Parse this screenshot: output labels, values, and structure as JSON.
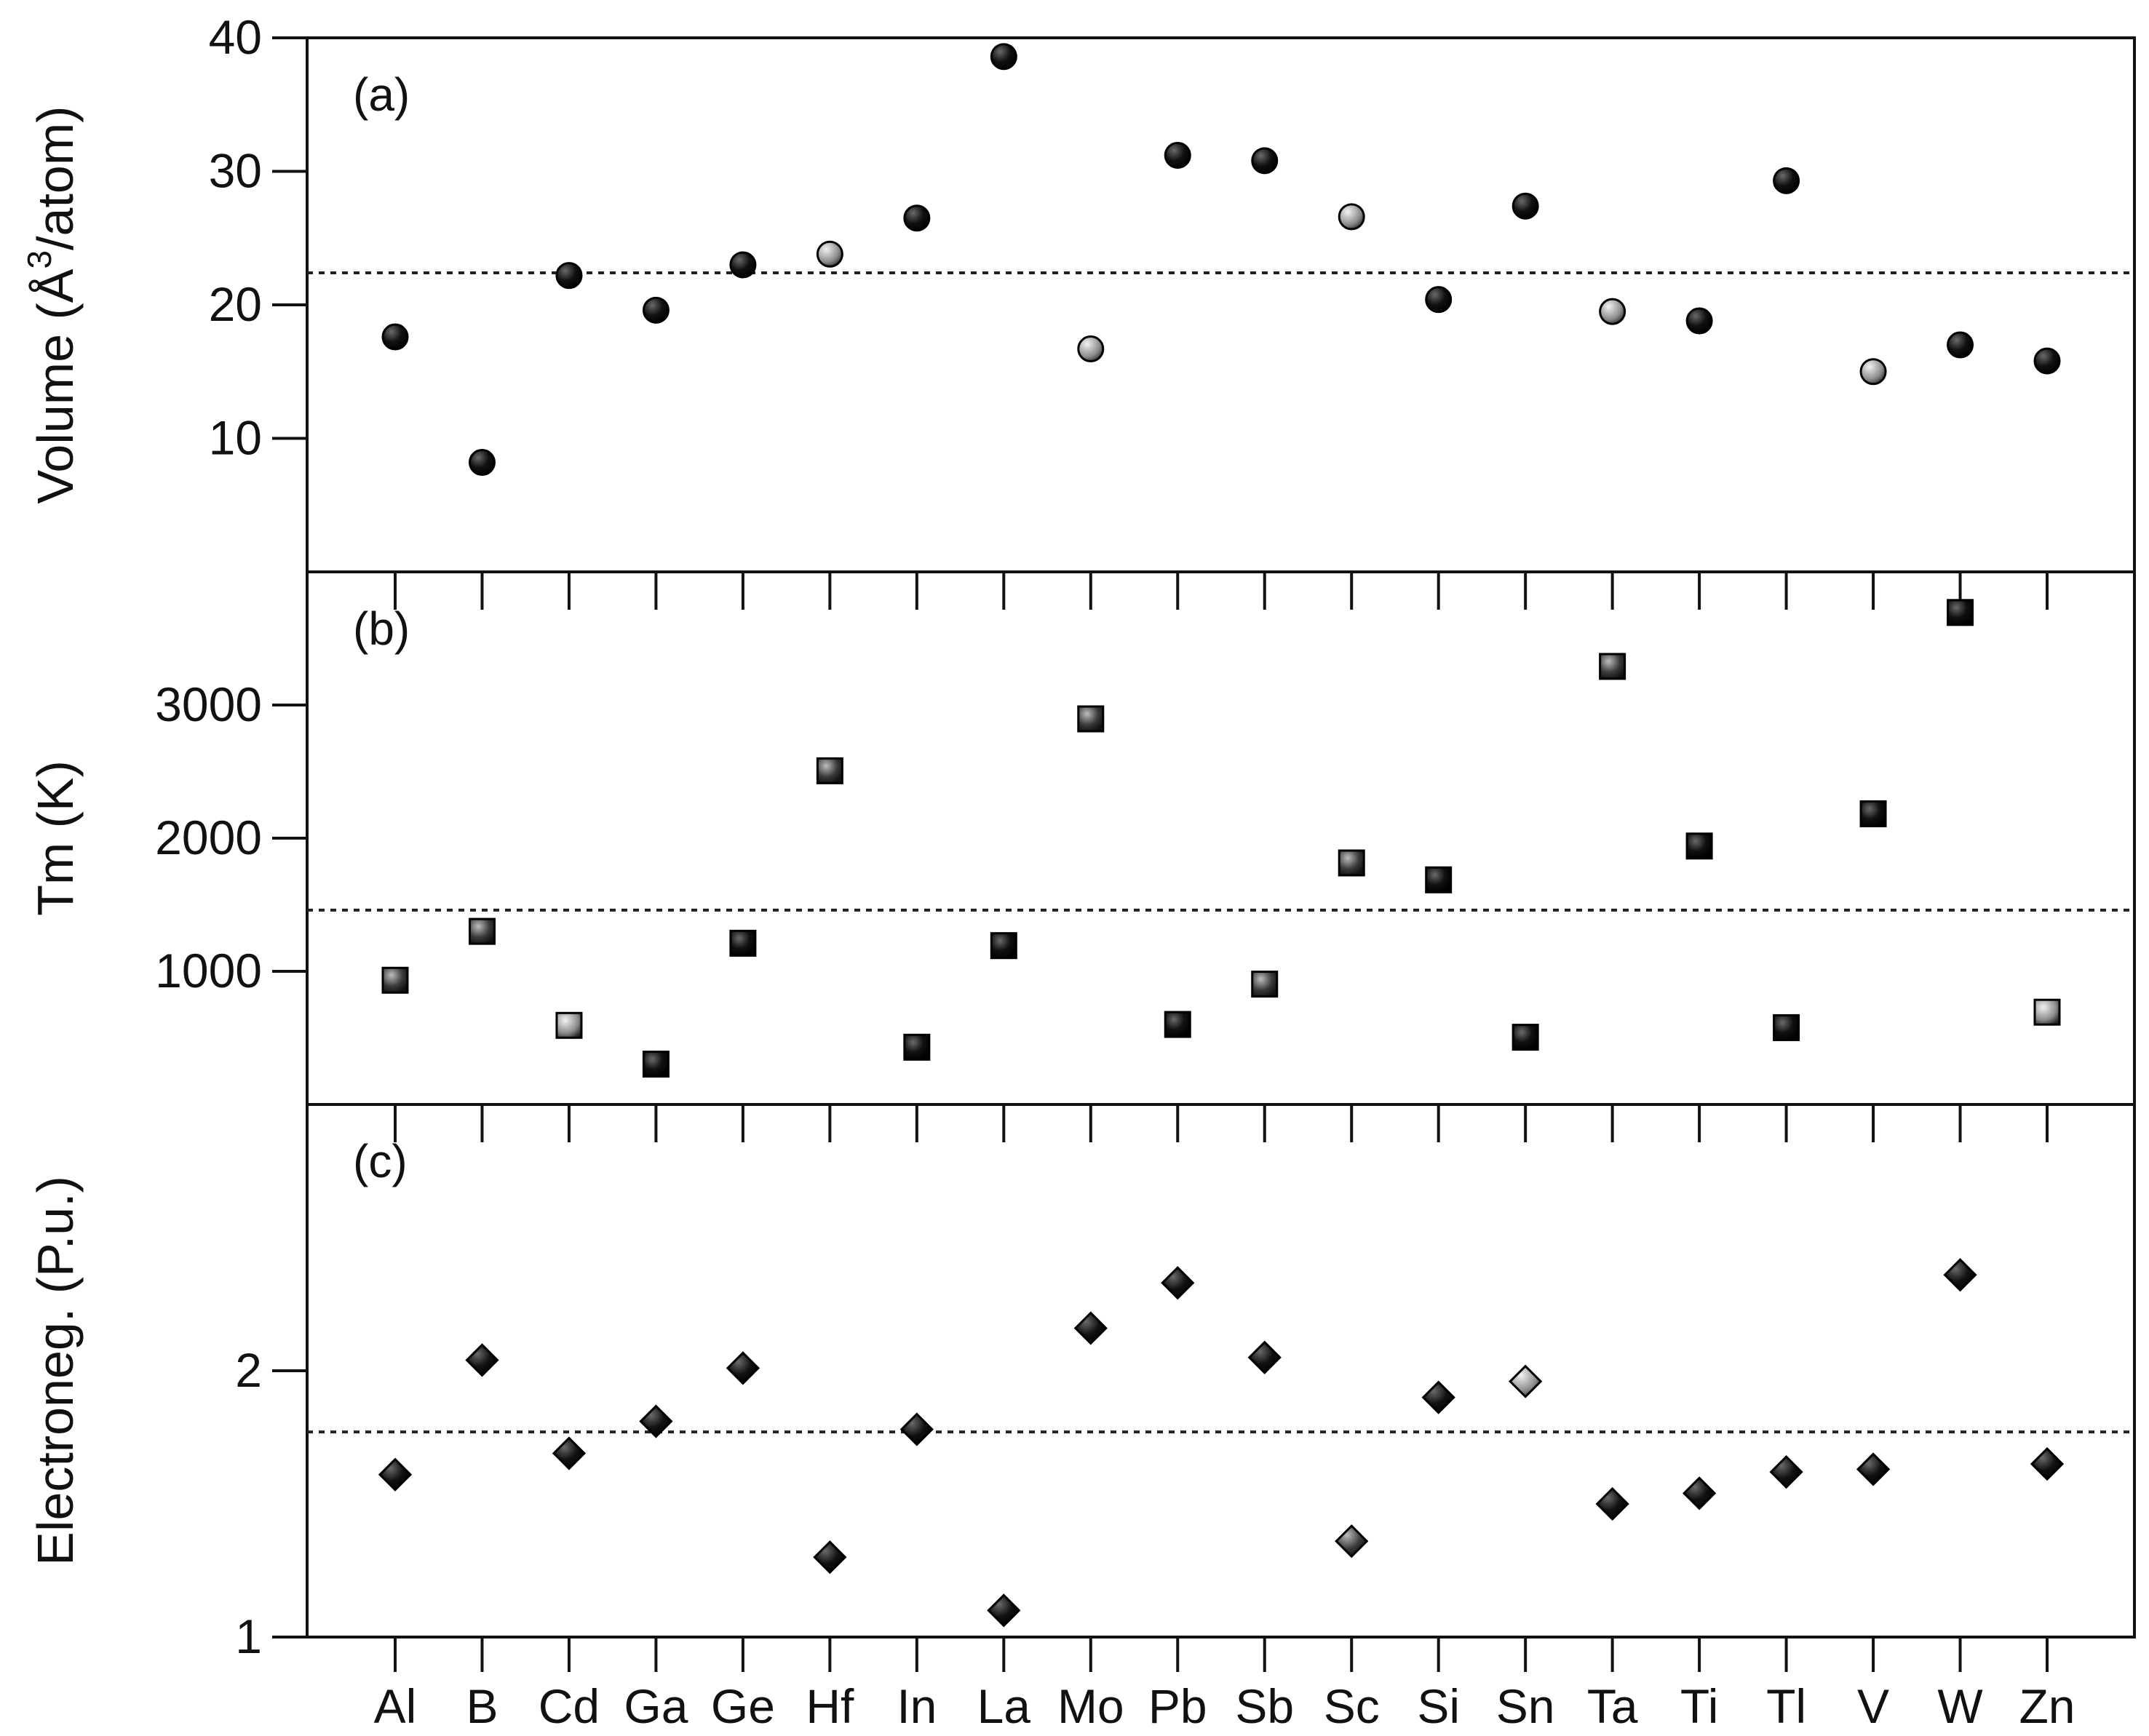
{
  "chart_data": {
    "type": "scatter",
    "categories": [
      "Al",
      "B",
      "Cd",
      "Ga",
      "Ge",
      "Hf",
      "In",
      "La",
      "Mo",
      "Pb",
      "Sb",
      "Sc",
      "Si",
      "Sn",
      "Ta",
      "Ti",
      "Tl",
      "V",
      "W",
      "Zn"
    ],
    "panels": [
      {
        "tag": "(a)",
        "ylabel": "Volume (Å³/atom)",
        "ylabel_parts": {
          "pre": "Volume (",
          "base": "Å",
          "sup": "3",
          "post": "/atom)"
        },
        "marker": "circle",
        "ylim": [
          0,
          40
        ],
        "yticks": [
          10,
          20,
          30,
          40
        ],
        "reference_line": 22.4,
        "values": [
          17.6,
          8.2,
          22.2,
          19.6,
          23.0,
          23.8,
          26.5,
          38.6,
          16.7,
          31.2,
          30.8,
          26.6,
          20.4,
          27.4,
          19.5,
          18.8,
          29.3,
          15.0,
          17.0,
          15.8
        ],
        "shade": [
          "dark",
          "dark",
          "dark",
          "dark",
          "dark",
          "light",
          "dark",
          "dark",
          "light",
          "dark",
          "dark",
          "light",
          "dark",
          "dark",
          "light",
          "dark",
          "dark",
          "light",
          "dark",
          "dark"
        ]
      },
      {
        "tag": "(b)",
        "ylabel": "Tm (K)",
        "marker": "square",
        "ylim": [
          0,
          4000
        ],
        "yticks": [
          1000,
          2000,
          3000
        ],
        "reference_line": 1460,
        "values": [
          933,
          1300,
          594,
          303,
          1211,
          2506,
          430,
          1193,
          2896,
          601,
          904,
          1814,
          1687,
          505,
          3290,
          1941,
          577,
          2183,
          3695,
          693
        ],
        "shade": [
          "mid",
          "mid",
          "light",
          "dark",
          "dark",
          "mid",
          "dark",
          "dark",
          "mid",
          "dark",
          "mid",
          "mid",
          "dark",
          "dark",
          "mid",
          "dark",
          "dark",
          "dark",
          "dark",
          "light"
        ]
      },
      {
        "tag": "(c)",
        "ylabel": "Electroneg. (P.u.)",
        "marker": "diamond",
        "ylim": [
          1,
          3
        ],
        "yticks": [
          1,
          2
        ],
        "reference_line": 1.77,
        "values": [
          1.61,
          2.04,
          1.69,
          1.81,
          2.01,
          1.3,
          1.78,
          1.1,
          2.16,
          2.33,
          2.05,
          1.36,
          1.9,
          1.96,
          1.5,
          1.54,
          1.62,
          1.63,
          2.36,
          1.65
        ],
        "shade": [
          "dark",
          "dark",
          "dark",
          "dark",
          "dark",
          "dark",
          "dark",
          "dark",
          "dark",
          "dark",
          "dark",
          "mid",
          "dark",
          "light",
          "dark",
          "dark",
          "dark",
          "dark",
          "dark",
          "dark"
        ]
      }
    ]
  }
}
